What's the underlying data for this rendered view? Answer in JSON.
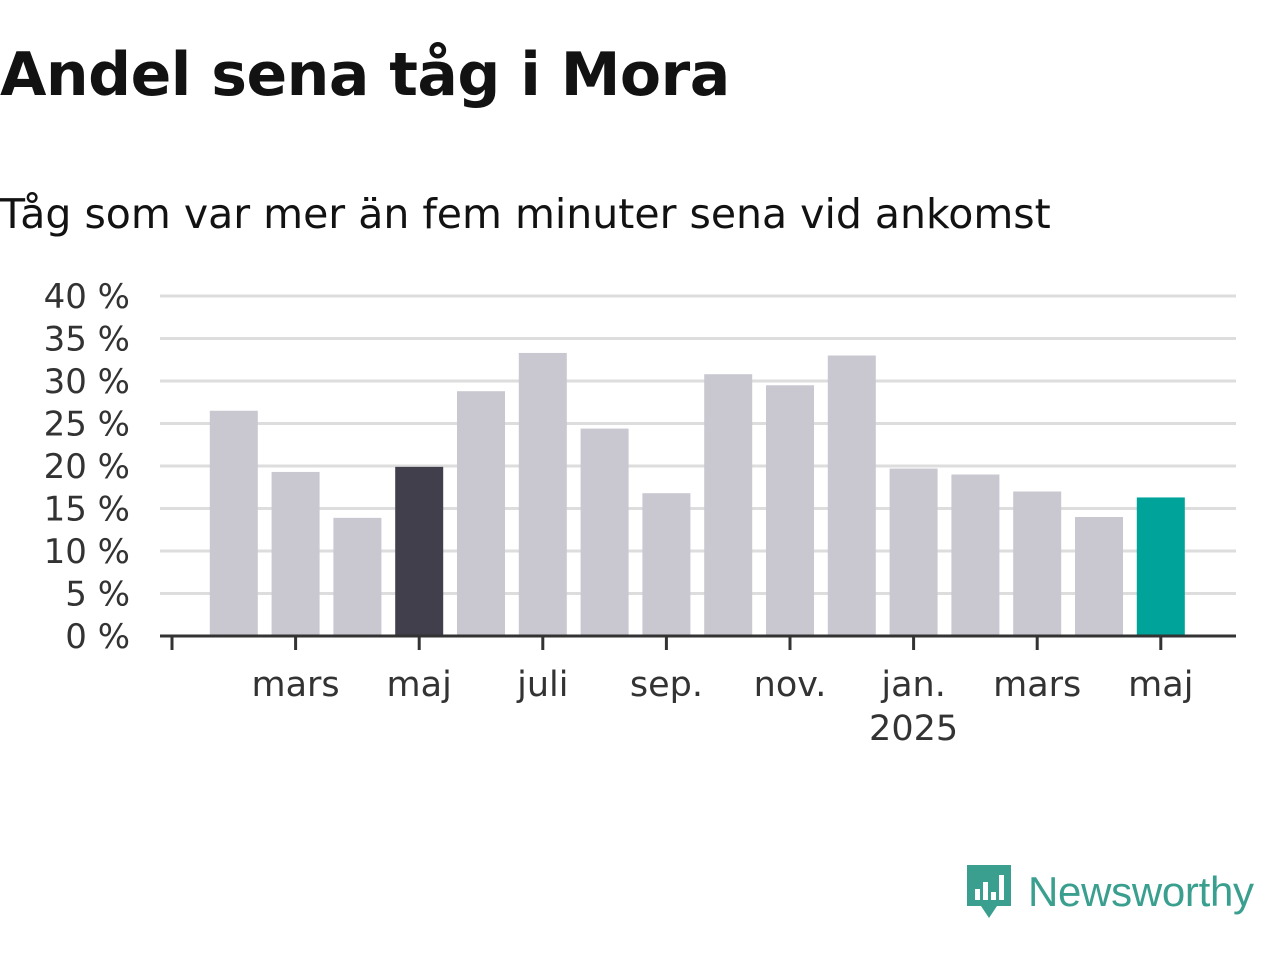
{
  "title": "Andel sena tåg i Mora",
  "subtitle": "Tåg som var mer än fem minuter sena vid ankomst",
  "brand": {
    "name": "Newsworthy",
    "logo_icon": "newsworthy-logo-icon"
  },
  "colors": {
    "bar": "#c9c8d1",
    "highlight_previous": "#403f4b",
    "highlight_latest": "#00a39a",
    "grid": "#dddddd",
    "axis": "#333333"
  },
  "chart_data": {
    "type": "bar",
    "y_tick_labels": [
      "0 %",
      "5 %",
      "10 %",
      "15 %",
      "20 %",
      "25 %",
      "30 %",
      "35 %",
      "40 %"
    ],
    "ylim": [
      0,
      40
    ],
    "grid": true,
    "x_tick_labels": [
      {
        "label": "mars",
        "sub": "",
        "index": 1
      },
      {
        "label": "maj",
        "sub": "",
        "index": 3
      },
      {
        "label": "juli",
        "sub": "",
        "index": 5
      },
      {
        "label": "sep.",
        "sub": "",
        "index": 7
      },
      {
        "label": "nov.",
        "sub": "",
        "index": 9
      },
      {
        "label": "jan.",
        "sub": "2025",
        "index": 11
      },
      {
        "label": "mars",
        "sub": "",
        "index": 13
      },
      {
        "label": "maj",
        "sub": "",
        "index": 15
      }
    ],
    "values": [
      26.5,
      19.3,
      13.9,
      19.9,
      28.8,
      33.3,
      24.4,
      16.8,
      30.8,
      29.5,
      33.0,
      19.7,
      19.0,
      17.0,
      14.0,
      16.3
    ],
    "highlight_previous_index": 3,
    "highlight_latest_index": 15
  }
}
